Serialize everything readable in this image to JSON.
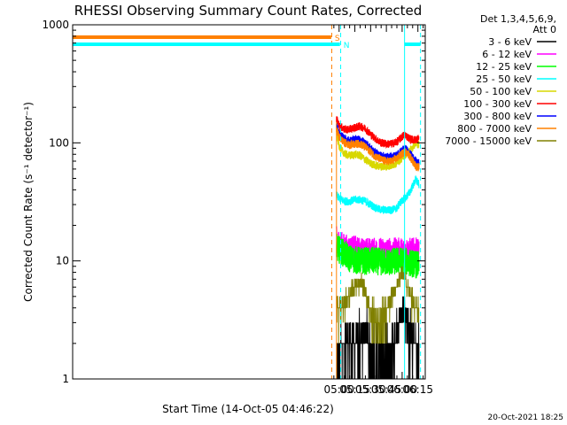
{
  "chart_data": {
    "type": "line",
    "title": "RHESSI Observing Summary Count Rates, Corrected",
    "xlabel": "Start Time (14-Oct-05 04:46:22)",
    "ylabel": "Corrected Count Rate (s⁻¹ detector⁻¹)",
    "yscale": "log",
    "ylim": [
      1,
      1000
    ],
    "xlim_minutes": [
      46.37,
      382.0
    ],
    "x_ticks": [
      {
        "label": "05:00",
        "minute": 300
      },
      {
        "label": "05:15",
        "minute": 315
      },
      {
        "label": "05:30",
        "minute": 330
      },
      {
        "label": "05:45",
        "minute": 345
      },
      {
        "label": "06:00",
        "minute": 360
      },
      {
        "label": "06:15",
        "minute": 375
      }
    ],
    "y_ticks": [
      {
        "label": "1",
        "value": 1
      },
      {
        "label": "10",
        "value": 10
      },
      {
        "label": "100",
        "value": 100
      },
      {
        "label": "1000",
        "value": 1000
      }
    ],
    "legend_header": [
      "Det 1,3,4,5,6,9,",
      "Att 0"
    ],
    "legend_placement": "right",
    "data_start_minute": 297.0,
    "series": [
      {
        "name": "3 - 6 keV",
        "color": "#000000",
        "points": [
          [
            297.5,
            1.5
          ],
          [
            300,
            1.8
          ],
          [
            303,
            2.0
          ],
          [
            306,
            1.9
          ],
          [
            310,
            2.1
          ],
          [
            314,
            2.2
          ],
          [
            318,
            2.0
          ],
          [
            322,
            2.4
          ],
          [
            326,
            2.5
          ],
          [
            330,
            1.7
          ],
          [
            334,
            1.3
          ],
          [
            338,
            1.2
          ],
          [
            342,
            1.2
          ],
          [
            346,
            1.3
          ],
          [
            350,
            1.6
          ],
          [
            354,
            2.2
          ],
          [
            358,
            3.5
          ],
          [
            361,
            4.2
          ],
          [
            363,
            3.8
          ],
          [
            365,
            2.6
          ],
          [
            368,
            2.2
          ],
          [
            371,
            2.0
          ],
          [
            374,
            1.8
          ],
          [
            376,
            1.6
          ]
        ]
      },
      {
        "name": "6 - 12 keV",
        "color": "#ff00ff",
        "points": [
          [
            297.5,
            15
          ],
          [
            300,
            14
          ],
          [
            305,
            13
          ],
          [
            310,
            12.5
          ],
          [
            315,
            12.5
          ],
          [
            320,
            12
          ],
          [
            325,
            12
          ],
          [
            330,
            12
          ],
          [
            335,
            12
          ],
          [
            340,
            12
          ],
          [
            345,
            12
          ],
          [
            350,
            12
          ],
          [
            355,
            12
          ],
          [
            360,
            12
          ],
          [
            365,
            12
          ],
          [
            370,
            12
          ],
          [
            374,
            12
          ],
          [
            376,
            12
          ]
        ]
      },
      {
        "name": "12 - 25 keV",
        "color": "#00ff00",
        "points": [
          [
            297.5,
            13
          ],
          [
            300,
            12.5
          ],
          [
            305,
            11.5
          ],
          [
            310,
            10.5
          ],
          [
            315,
            10.2
          ],
          [
            320,
            10
          ],
          [
            325,
            10
          ],
          [
            330,
            10
          ],
          [
            335,
            10
          ],
          [
            340,
            9.8
          ],
          [
            345,
            9.8
          ],
          [
            350,
            9.8
          ],
          [
            355,
            10
          ],
          [
            360,
            10
          ],
          [
            365,
            9.8
          ],
          [
            370,
            9.5
          ],
          [
            374,
            9.3
          ],
          [
            376,
            9.2
          ]
        ]
      },
      {
        "name": "25 - 50 keV",
        "color": "#00ffff",
        "points": [
          [
            297.5,
            36
          ],
          [
            300,
            34
          ],
          [
            305,
            32
          ],
          [
            310,
            32
          ],
          [
            315,
            33
          ],
          [
            320,
            33
          ],
          [
            325,
            32
          ],
          [
            330,
            30
          ],
          [
            335,
            28
          ],
          [
            340,
            27
          ],
          [
            345,
            27
          ],
          [
            350,
            27
          ],
          [
            355,
            28
          ],
          [
            358,
            31
          ],
          [
            361,
            33
          ],
          [
            364,
            35
          ],
          [
            367,
            38
          ],
          [
            370,
            43
          ],
          [
            373,
            49
          ],
          [
            375,
            46
          ],
          [
            376,
            44
          ]
        ]
      },
      {
        "name": "50 - 100 keV",
        "color": "#d8d800",
        "points": [
          [
            297.5,
            120
          ],
          [
            300,
            95
          ],
          [
            303,
            85
          ],
          [
            306,
            80
          ],
          [
            310,
            78
          ],
          [
            315,
            80
          ],
          [
            320,
            78
          ],
          [
            325,
            72
          ],
          [
            330,
            67
          ],
          [
            335,
            64
          ],
          [
            340,
            63
          ],
          [
            345,
            63
          ],
          [
            350,
            64
          ],
          [
            355,
            68
          ],
          [
            358,
            72
          ],
          [
            361,
            77
          ],
          [
            364,
            80
          ],
          [
            367,
            85
          ],
          [
            370,
            92
          ],
          [
            373,
            100
          ],
          [
            376,
            96
          ]
        ]
      },
      {
        "name": "100 - 300 keV",
        "color": "#ff0000",
        "points": [
          [
            297.5,
            160
          ],
          [
            300,
            140
          ],
          [
            305,
            130
          ],
          [
            310,
            130
          ],
          [
            315,
            135
          ],
          [
            320,
            138
          ],
          [
            325,
            132
          ],
          [
            330,
            118
          ],
          [
            335,
            108
          ],
          [
            340,
            100
          ],
          [
            345,
            98
          ],
          [
            350,
            98
          ],
          [
            355,
            102
          ],
          [
            358,
            108
          ],
          [
            361,
            115
          ],
          [
            363,
            118
          ],
          [
            365,
            112
          ],
          [
            368,
            108
          ],
          [
            371,
            106
          ],
          [
            374,
            107
          ],
          [
            376,
            110
          ]
        ]
      },
      {
        "name": "300 - 800 keV",
        "color": "#0000ff",
        "points": [
          [
            297.5,
            140
          ],
          [
            300,
            120
          ],
          [
            305,
            108
          ],
          [
            310,
            104
          ],
          [
            315,
            106
          ],
          [
            320,
            106
          ],
          [
            325,
            100
          ],
          [
            330,
            90
          ],
          [
            335,
            82
          ],
          [
            340,
            78
          ],
          [
            345,
            76
          ],
          [
            350,
            76
          ],
          [
            355,
            79
          ],
          [
            358,
            83
          ],
          [
            361,
            88
          ],
          [
            363,
            89
          ],
          [
            365,
            86
          ],
          [
            368,
            80
          ],
          [
            371,
            74
          ],
          [
            374,
            68
          ],
          [
            376,
            67
          ]
        ]
      },
      {
        "name": "800 - 7000 keV",
        "color": "#ff8000",
        "points": [
          [
            297.5,
            130
          ],
          [
            300,
            112
          ],
          [
            305,
            100
          ],
          [
            310,
            96
          ],
          [
            315,
            98
          ],
          [
            320,
            98
          ],
          [
            325,
            92
          ],
          [
            330,
            84
          ],
          [
            335,
            76
          ],
          [
            340,
            72
          ],
          [
            345,
            70
          ],
          [
            350,
            70
          ],
          [
            355,
            74
          ],
          [
            358,
            78
          ],
          [
            361,
            82
          ],
          [
            363,
            84
          ],
          [
            365,
            82
          ],
          [
            368,
            75
          ],
          [
            371,
            68
          ],
          [
            374,
            62
          ],
          [
            376,
            62
          ]
        ]
      },
      {
        "name": "7000 - 15000 keV",
        "color": "#808000",
        "points": [
          [
            297.5,
            4.5
          ],
          [
            300,
            3.7
          ],
          [
            304,
            4.2
          ],
          [
            308,
            4.6
          ],
          [
            312,
            5.5
          ],
          [
            316,
            6.2
          ],
          [
            320,
            6.6
          ],
          [
            324,
            5.6
          ],
          [
            328,
            4.4
          ],
          [
            332,
            3.3
          ],
          [
            336,
            3.0
          ],
          [
            340,
            3.2
          ],
          [
            344,
            3.7
          ],
          [
            348,
            4.4
          ],
          [
            352,
            5.4
          ],
          [
            356,
            6.6
          ],
          [
            359,
            7.6
          ],
          [
            362,
            7.2
          ],
          [
            365,
            6.2
          ],
          [
            368,
            5.0
          ],
          [
            371,
            4.3
          ],
          [
            374,
            4.0
          ],
          [
            376,
            3.8
          ]
        ]
      }
    ],
    "markers": [
      {
        "label": "S",
        "color": "#ff8000",
        "style": "dashed",
        "minute": 293.0,
        "bar_start_minute": 46.37,
        "bar_end_minute": 292.5
      },
      {
        "label": "N",
        "color": "#00ffff",
        "style": "dashed",
        "minute": 301.5,
        "bar_start_minute": 46.37,
        "bar_end_minute": 300.8
      },
      {
        "label": "",
        "color": "#00ffff",
        "style": "solid",
        "minute": 362.3,
        "bar_start_minute": 362.3,
        "bar_end_minute": 377.5
      },
      {
        "label": "",
        "color": "#00ffff",
        "style": "dashed",
        "minute": 377.5,
        "bar_start_minute": null,
        "bar_end_minute": null
      }
    ]
  },
  "footer_timestamp": "20-Oct-2021 18:25"
}
